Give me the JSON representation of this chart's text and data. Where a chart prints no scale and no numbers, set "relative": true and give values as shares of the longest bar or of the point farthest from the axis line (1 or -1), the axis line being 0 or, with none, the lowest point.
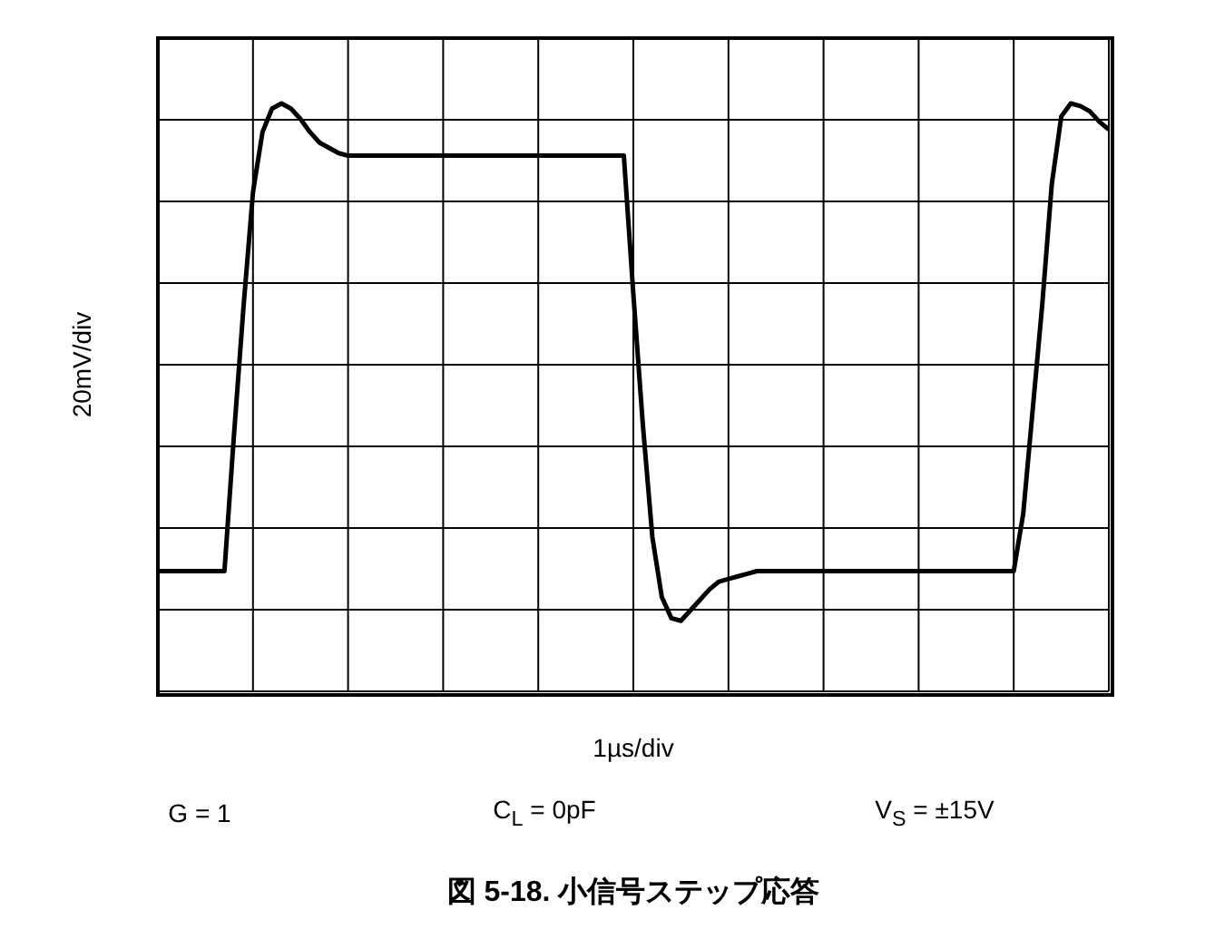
{
  "chart_data": {
    "type": "line",
    "title": "図 5-18. 小信号ステップ応答",
    "xlabel": "1µs/div",
    "ylabel": "20mV/div",
    "annotations": [
      "G = 1",
      "C$_{L}$ = 0pF",
      "V$_{S}$ = ±15V"
    ],
    "relative": true,
    "grid": true,
    "categories": [
      null,
      null,
      null,
      null,
      null,
      null,
      null,
      null,
      null,
      null,
      null,
      null,
      null,
      null,
      null,
      null,
      null,
      null,
      null,
      null,
      null,
      null,
      null,
      null,
      null,
      null,
      null,
      null,
      null,
      null,
      null,
      null,
      null,
      null,
      null,
      null,
      null,
      null,
      null,
      null,
      null,
      null,
      null,
      null,
      null,
      null,
      null,
      null,
      null,
      null,
      null,
      null,
      null,
      null,
      null,
      null,
      null,
      null,
      null,
      null,
      null,
      null,
      null,
      null,
      null,
      null,
      null,
      null,
      null,
      null,
      null,
      null,
      null,
      null,
      null,
      null,
      null,
      null,
      null,
      null,
      null,
      null,
      null,
      null,
      null,
      null,
      null,
      null,
      null,
      null,
      null,
      null,
      null,
      null,
      null,
      null,
      null,
      null,
      null,
      null,
      null
    ],
    "series": [
      {
        "color": "#000000",
        "values": [
          -0.79,
          -0.79,
          -0.79,
          -0.79,
          -0.79,
          -0.79,
          -0.79,
          -0.79,
          -0.27,
          0.22,
          0.66,
          0.89,
          0.98,
          1,
          0.98,
          0.94,
          0.89,
          0.85,
          0.83,
          0.81,
          0.8,
          0.8,
          0.8,
          0.8,
          0.8,
          0.8,
          0.8,
          0.8,
          0.8,
          0.8,
          0.8,
          0.8,
          0.8,
          0.8,
          0.8,
          0.8,
          0.8,
          0.8,
          0.8,
          0.8,
          0.8,
          0.8,
          0.8,
          0.8,
          0.8,
          0.8,
          0.8,
          0.8,
          0.8,
          0.8,
          0.27,
          -0.23,
          -0.66,
          -0.89,
          -0.97,
          -0.98,
          -0.94,
          -0.9,
          -0.86,
          -0.83,
          -0.82,
          -0.81,
          -0.8,
          -0.79,
          -0.79,
          -0.79,
          -0.79,
          -0.79,
          -0.79,
          -0.79,
          -0.79,
          -0.79,
          -0.79,
          -0.79,
          -0.79,
          -0.79,
          -0.79,
          -0.79,
          -0.79,
          -0.79,
          -0.79,
          -0.79,
          -0.79,
          -0.79,
          -0.79,
          -0.79,
          -0.79,
          -0.79,
          -0.79,
          -0.79,
          -0.79,
          -0.57,
          -0.17,
          0.23,
          0.69,
          0.95,
          1,
          0.99,
          0.97,
          0.93,
          0.9
        ]
      }
    ]
  }
}
